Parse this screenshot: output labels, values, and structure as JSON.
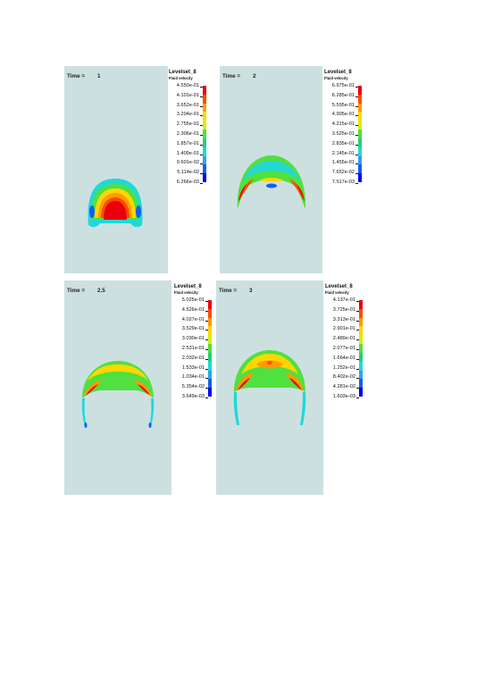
{
  "panels": [
    {
      "time_label": "Time =",
      "time_value": "1",
      "legend_title": "Levelset_8",
      "legend_subtitle": "Fluid velocity",
      "legend_values": [
        "4.550e-01",
        "4.101e-01",
        "3.652e-01",
        "3.204e-01",
        "2.755e-01",
        "2.306e-01",
        "1.857e-01",
        "1.409e-01",
        "9.601e-02",
        "5.114e-02",
        "6.266e-03"
      ]
    },
    {
      "time_label": "Time =",
      "time_value": "2",
      "legend_title": "Levelset_8",
      "legend_subtitle": "Fluid velocity",
      "legend_values": [
        "6.975e-01",
        "6.285e-01",
        "5.595e-01",
        "4.905e-01",
        "4.215e-01",
        "3.525e-01",
        "2.835e-01",
        "2.145e-01",
        "1.455e-01",
        "7.652e-02",
        "7.517e-03"
      ]
    },
    {
      "time_label": "Time =",
      "time_value": "2.5",
      "legend_title": "Levelset_8",
      "legend_subtitle": "Fluid velocity",
      "legend_values": [
        "5.025e-01",
        "4.526e-01",
        "4.027e-01",
        "3.529e-01",
        "3.030e-01",
        "2.531e-01",
        "2.032e-01",
        "1.533e-01",
        "1.034e-01",
        "5.354e-02",
        "3.649e-03"
      ]
    },
    {
      "time_label": "Time =",
      "time_value": "3",
      "legend_title": "Levelset_8",
      "legend_subtitle": "Fluid velocity",
      "legend_values": [
        "4.137e-01",
        "3.725e-01",
        "3.313e-01",
        "2.901e-01",
        "2.489e-01",
        "2.077e-01",
        "1.664e-01",
        "1.252e-01",
        "8.402e-02",
        "4.281e-02",
        "1.603e-03"
      ]
    }
  ],
  "colors": {
    "panel_background": "#cce0e0",
    "colormap": [
      "#e8000b",
      "#ff4a00",
      "#ff9a00",
      "#ffd700",
      "#d4f000",
      "#50e040",
      "#20d080",
      "#20d8d8",
      "#30a0f0",
      "#1060f0",
      "#0000e8"
    ]
  }
}
